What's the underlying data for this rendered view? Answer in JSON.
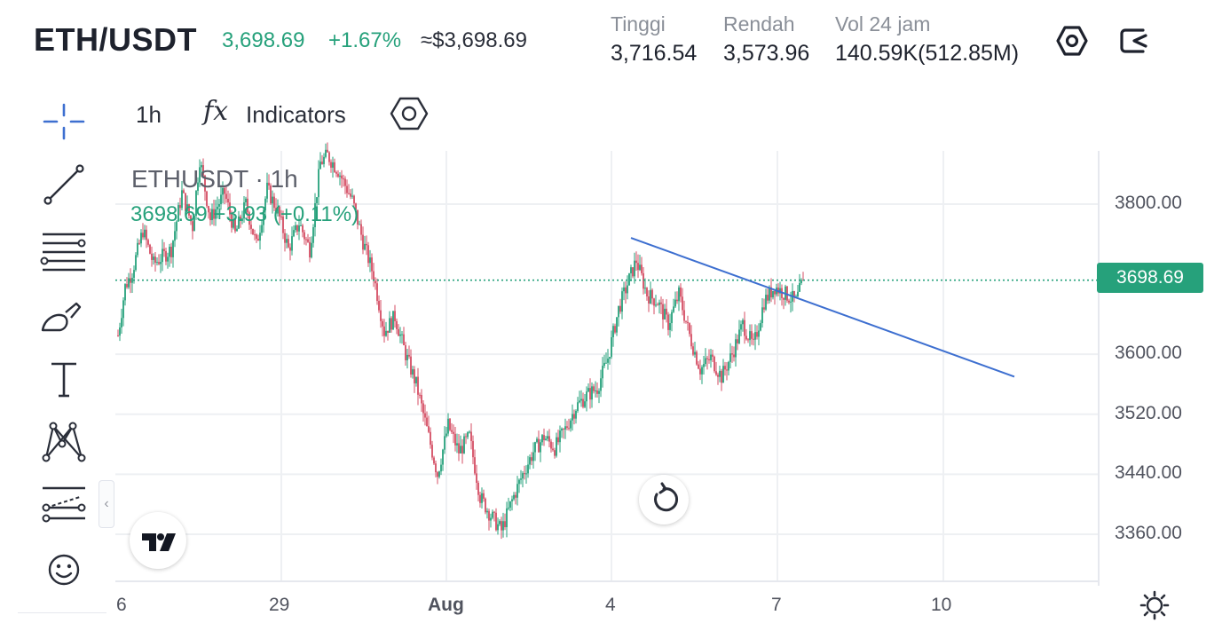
{
  "header": {
    "pair": "ETH/USDT",
    "last_price": "3,698.69",
    "change_pct": "+1.67%",
    "approx_usd": "≈$3,698.69",
    "stats": [
      {
        "label": "Tinggi",
        "value": "3,716.54"
      },
      {
        "label": "Rendah",
        "value": "3,573.96"
      },
      {
        "label": "Vol 24 jam",
        "value": "140.59K(512.85M)"
      }
    ],
    "icons": [
      "settings-hex-icon",
      "share-exit-icon"
    ]
  },
  "toolbar": {
    "timeframe": "1h",
    "fx_symbol": "fx",
    "indicators_label": "Indicators",
    "settings_icon": "settings-hex-icon"
  },
  "left_tools": [
    "crosshair-icon",
    "trend-line-icon",
    "fib-lines-icon",
    "brush-icon",
    "text-icon",
    "pattern-icon",
    "forecast-icon",
    "emoji-icon"
  ],
  "legend": {
    "symbol": "ETHUSDT",
    "separator": "·",
    "interval": "1h",
    "value_line": "3698.69  +3.93 (+0.11%)"
  },
  "colors": {
    "up": "#26a17b",
    "down": "#d44d63",
    "trendline": "#3d6fd0",
    "grid": "#eef0f3",
    "price_line": "#26a17b"
  },
  "price_tag": "3698.69",
  "chart_data": {
    "type": "candlestick",
    "y_ticks": [
      "3800.00",
      "3600.00",
      "3520.00",
      "3440.00",
      "3360.00"
    ],
    "y_tick_values": [
      3800,
      3600,
      3520,
      3440,
      3360
    ],
    "x_ticks": [
      "6",
      "29",
      "Aug",
      "4",
      "7",
      "10"
    ],
    "current_price": 3698.69,
    "y_range": [
      3320,
      3880
    ],
    "close_path": [
      {
        "t": 0,
        "p": 3625
      },
      {
        "t": 4,
        "p": 3690
      },
      {
        "t": 8,
        "p": 3710
      },
      {
        "t": 14,
        "p": 3765
      },
      {
        "t": 20,
        "p": 3720
      },
      {
        "t": 30,
        "p": 3740
      },
      {
        "t": 36,
        "p": 3815
      },
      {
        "t": 42,
        "p": 3770
      },
      {
        "t": 46,
        "p": 3860
      },
      {
        "t": 52,
        "p": 3780
      },
      {
        "t": 60,
        "p": 3815
      },
      {
        "t": 66,
        "p": 3760
      },
      {
        "t": 72,
        "p": 3800
      },
      {
        "t": 78,
        "p": 3745
      },
      {
        "t": 84,
        "p": 3820
      },
      {
        "t": 90,
        "p": 3790
      },
      {
        "t": 96,
        "p": 3740
      },
      {
        "t": 102,
        "p": 3775
      },
      {
        "t": 108,
        "p": 3740
      },
      {
        "t": 114,
        "p": 3855
      },
      {
        "t": 118,
        "p": 3865
      },
      {
        "t": 124,
        "p": 3845
      },
      {
        "t": 132,
        "p": 3805
      },
      {
        "t": 138,
        "p": 3750
      },
      {
        "t": 144,
        "p": 3705
      },
      {
        "t": 150,
        "p": 3630
      },
      {
        "t": 156,
        "p": 3650
      },
      {
        "t": 162,
        "p": 3600
      },
      {
        "t": 168,
        "p": 3560
      },
      {
        "t": 174,
        "p": 3500
      },
      {
        "t": 180,
        "p": 3440
      },
      {
        "t": 186,
        "p": 3505
      },
      {
        "t": 192,
        "p": 3470
      },
      {
        "t": 198,
        "p": 3490
      },
      {
        "t": 204,
        "p": 3410
      },
      {
        "t": 210,
        "p": 3385
      },
      {
        "t": 216,
        "p": 3365
      },
      {
        "t": 222,
        "p": 3405
      },
      {
        "t": 228,
        "p": 3440
      },
      {
        "t": 234,
        "p": 3470
      },
      {
        "t": 240,
        "p": 3490
      },
      {
        "t": 246,
        "p": 3475
      },
      {
        "t": 252,
        "p": 3500
      },
      {
        "t": 258,
        "p": 3530
      },
      {
        "t": 264,
        "p": 3545
      },
      {
        "t": 270,
        "p": 3555
      },
      {
        "t": 276,
        "p": 3595
      },
      {
        "t": 282,
        "p": 3660
      },
      {
        "t": 288,
        "p": 3700
      },
      {
        "t": 292,
        "p": 3725
      },
      {
        "t": 298,
        "p": 3680
      },
      {
        "t": 304,
        "p": 3670
      },
      {
        "t": 310,
        "p": 3640
      },
      {
        "t": 316,
        "p": 3680
      },
      {
        "t": 322,
        "p": 3625
      },
      {
        "t": 328,
        "p": 3580
      },
      {
        "t": 334,
        "p": 3595
      },
      {
        "t": 340,
        "p": 3570
      },
      {
        "t": 346,
        "p": 3600
      },
      {
        "t": 352,
        "p": 3640
      },
      {
        "t": 358,
        "p": 3610
      },
      {
        "t": 364,
        "p": 3670
      },
      {
        "t": 370,
        "p": 3690
      },
      {
        "t": 376,
        "p": 3680
      },
      {
        "t": 382,
        "p": 3670
      },
      {
        "t": 386,
        "p": 3698.69
      }
    ],
    "trendline": {
      "from": {
        "t": 289,
        "p": 3755
      },
      "to": {
        "t": 505,
        "p": 3570
      }
    }
  }
}
